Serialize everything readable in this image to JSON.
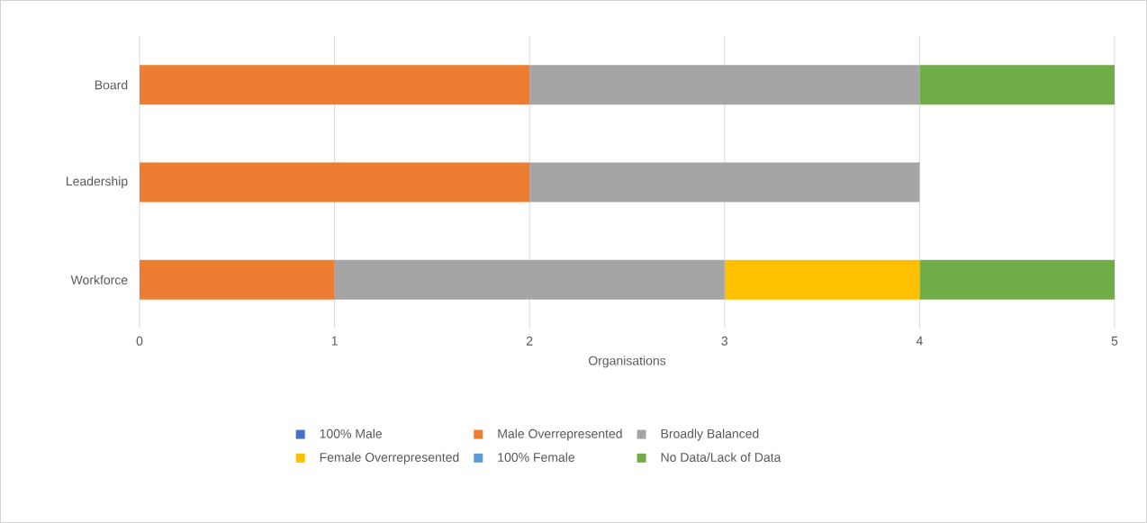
{
  "chart_data": {
    "type": "bar",
    "orientation": "horizontal",
    "stacked": true,
    "xlabel": "Organisations",
    "categories": [
      "Board",
      "Leadership",
      "Workforce"
    ],
    "series": [
      {
        "name": "100% Male",
        "color": "#4472c4",
        "values": [
          0,
          0,
          0
        ]
      },
      {
        "name": "Male Overrepresented",
        "color": "#ed7d31",
        "values": [
          2,
          2,
          1
        ]
      },
      {
        "name": "Broadly Balanced",
        "color": "#a5a5a5",
        "values": [
          2,
          2,
          2
        ]
      },
      {
        "name": "Female Overrepresented",
        "color": "#ffc000",
        "values": [
          0,
          0,
          1
        ]
      },
      {
        "name": "100% Female",
        "color": "#5b9bd5",
        "values": [
          0,
          0,
          0
        ]
      },
      {
        "name": "No Data/Lack of Data",
        "color": "#70ad47",
        "values": [
          1,
          0,
          1
        ]
      }
    ],
    "xlim": [
      0,
      5
    ],
    "xticks": [
      0,
      1,
      2,
      3,
      4,
      5
    ],
    "grid": "x",
    "legend": "bottom"
  }
}
